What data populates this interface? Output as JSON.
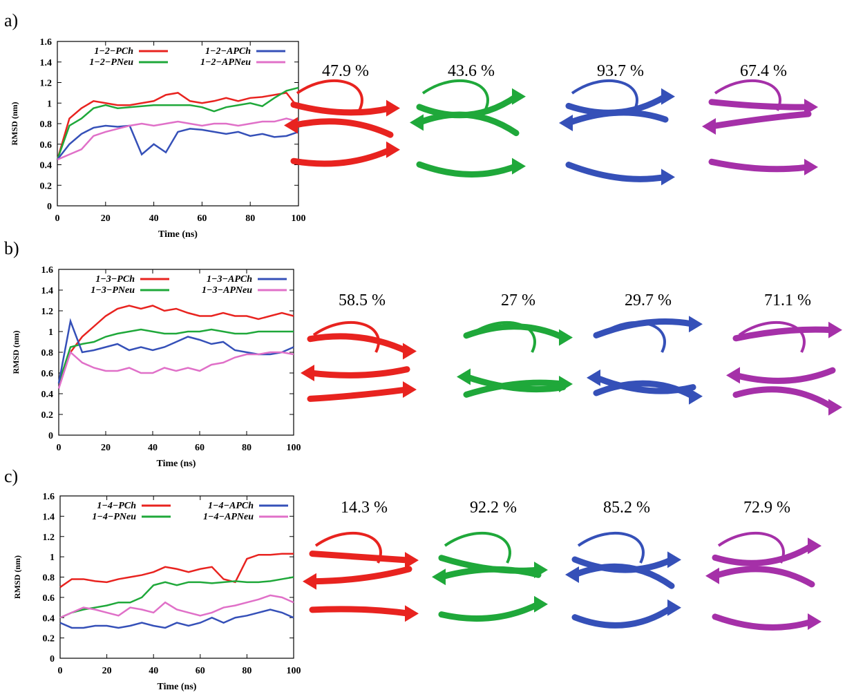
{
  "chart_data": [
    {
      "type": "line",
      "panel_label": "a)",
      "xlabel": "Time (ns)",
      "ylabel": "RMSD (nm)",
      "x": [
        0,
        5,
        10,
        15,
        20,
        25,
        30,
        35,
        40,
        45,
        50,
        55,
        60,
        65,
        70,
        75,
        80,
        85,
        90,
        95,
        100
      ],
      "xlim": [
        0,
        100
      ],
      "xticks": [
        0,
        20,
        40,
        60,
        80,
        100
      ],
      "ylim": [
        0,
        1.6
      ],
      "yticks": [
        0,
        0.2,
        0.4,
        0.6,
        0.8,
        1,
        1.2,
        1.4,
        1.6
      ],
      "series": [
        {
          "name": "1−2−PCh",
          "color": "#e8231f",
          "values": [
            0.45,
            0.85,
            0.95,
            1.02,
            1.0,
            0.98,
            0.98,
            1.0,
            1.02,
            1.08,
            1.1,
            1.02,
            1.0,
            1.02,
            1.05,
            1.02,
            1.05,
            1.06,
            1.08,
            1.1,
            0.95
          ]
        },
        {
          "name": "1−2−PNeu",
          "color": "#1fa83a",
          "values": [
            0.45,
            0.78,
            0.85,
            0.95,
            0.98,
            0.95,
            0.96,
            0.97,
            0.98,
            0.98,
            0.98,
            0.98,
            0.96,
            0.92,
            0.96,
            0.98,
            1.0,
            0.97,
            1.05,
            1.12,
            1.15
          ]
        },
        {
          "name": "1−2−APCh",
          "color": "#3550b8",
          "values": [
            0.45,
            0.6,
            0.7,
            0.76,
            0.78,
            0.77,
            0.78,
            0.5,
            0.6,
            0.52,
            0.72,
            0.75,
            0.74,
            0.72,
            0.7,
            0.72,
            0.68,
            0.7,
            0.67,
            0.68,
            0.72
          ]
        },
        {
          "name": "1−2−APNeu",
          "color": "#e070c8",
          "values": [
            0.45,
            0.5,
            0.55,
            0.68,
            0.72,
            0.75,
            0.78,
            0.8,
            0.78,
            0.8,
            0.82,
            0.8,
            0.78,
            0.8,
            0.8,
            0.78,
            0.8,
            0.82,
            0.82,
            0.85,
            0.82
          ]
        }
      ],
      "structure_labels": [
        "47.9 %",
        "43.6 %",
        "93.7 %",
        "67.4 %"
      ]
    },
    {
      "type": "line",
      "panel_label": "b)",
      "xlabel": "Time (ns)",
      "ylabel": "RMSD (nm)",
      "x": [
        0,
        5,
        10,
        15,
        20,
        25,
        30,
        35,
        40,
        45,
        50,
        55,
        60,
        65,
        70,
        75,
        80,
        85,
        90,
        95,
        100
      ],
      "xlim": [
        0,
        100
      ],
      "xticks": [
        0,
        20,
        40,
        60,
        80,
        100
      ],
      "ylim": [
        0,
        1.6
      ],
      "yticks": [
        0,
        0.2,
        0.4,
        0.6,
        0.8,
        1,
        1.2,
        1.4,
        1.6
      ],
      "series": [
        {
          "name": "1−3−PCh",
          "color": "#e8231f",
          "values": [
            0.5,
            0.8,
            0.95,
            1.05,
            1.15,
            1.22,
            1.25,
            1.22,
            1.25,
            1.2,
            1.22,
            1.18,
            1.15,
            1.15,
            1.18,
            1.15,
            1.15,
            1.12,
            1.15,
            1.18,
            1.15
          ]
        },
        {
          "name": "1−3−PNeu",
          "color": "#1fa83a",
          "values": [
            0.5,
            0.85,
            0.88,
            0.9,
            0.95,
            0.98,
            1.0,
            1.02,
            1.0,
            0.98,
            0.98,
            1.0,
            1.0,
            1.02,
            1.0,
            0.98,
            0.98,
            1.0,
            1.0,
            1.0,
            1.0
          ]
        },
        {
          "name": "1−3−APCh",
          "color": "#3550b8",
          "values": [
            0.5,
            1.1,
            0.8,
            0.82,
            0.85,
            0.88,
            0.82,
            0.85,
            0.82,
            0.85,
            0.9,
            0.95,
            0.92,
            0.88,
            0.9,
            0.82,
            0.8,
            0.78,
            0.78,
            0.8,
            0.85
          ]
        },
        {
          "name": "1−3−APNeu",
          "color": "#e070c8",
          "values": [
            0.45,
            0.8,
            0.7,
            0.65,
            0.62,
            0.62,
            0.65,
            0.6,
            0.6,
            0.65,
            0.62,
            0.65,
            0.62,
            0.68,
            0.7,
            0.75,
            0.78,
            0.78,
            0.8,
            0.8,
            0.78
          ]
        }
      ],
      "structure_labels": [
        "58.5 %",
        "27 %",
        "29.7 %",
        "71.1 %"
      ]
    },
    {
      "type": "line",
      "panel_label": "c)",
      "xlabel": "Time (ns)",
      "ylabel": "RMSD (nm)",
      "x": [
        0,
        5,
        10,
        15,
        20,
        25,
        30,
        35,
        40,
        45,
        50,
        55,
        60,
        65,
        70,
        75,
        80,
        85,
        90,
        95,
        100
      ],
      "xlim": [
        0,
        100
      ],
      "xticks": [
        0,
        20,
        40,
        60,
        80,
        100
      ],
      "ylim": [
        0,
        1.6
      ],
      "yticks": [
        0,
        0.2,
        0.4,
        0.6,
        0.8,
        1,
        1.2,
        1.4,
        1.6
      ],
      "series": [
        {
          "name": "1−4−PCh",
          "color": "#e8231f",
          "values": [
            0.7,
            0.78,
            0.78,
            0.76,
            0.75,
            0.78,
            0.8,
            0.82,
            0.85,
            0.9,
            0.88,
            0.85,
            0.88,
            0.9,
            0.78,
            0.75,
            0.98,
            1.02,
            1.02,
            1.03,
            1.03
          ]
        },
        {
          "name": "1−4−PNeu",
          "color": "#1fa83a",
          "values": [
            0.4,
            0.45,
            0.48,
            0.5,
            0.52,
            0.55,
            0.55,
            0.6,
            0.72,
            0.75,
            0.72,
            0.75,
            0.75,
            0.74,
            0.75,
            0.76,
            0.75,
            0.75,
            0.76,
            0.78,
            0.8
          ]
        },
        {
          "name": "1−4−APCh",
          "color": "#3550b8",
          "values": [
            0.35,
            0.3,
            0.3,
            0.32,
            0.32,
            0.3,
            0.32,
            0.35,
            0.32,
            0.3,
            0.35,
            0.32,
            0.35,
            0.4,
            0.35,
            0.4,
            0.42,
            0.45,
            0.48,
            0.45,
            0.4
          ]
        },
        {
          "name": "1−4−APNeu",
          "color": "#e070c8",
          "values": [
            0.4,
            0.45,
            0.5,
            0.48,
            0.45,
            0.42,
            0.5,
            0.48,
            0.45,
            0.55,
            0.48,
            0.45,
            0.42,
            0.45,
            0.5,
            0.52,
            0.55,
            0.58,
            0.62,
            0.6,
            0.55
          ]
        }
      ],
      "structure_labels": [
        "14.3 %",
        "92.2 %",
        "85.2 %",
        "72.9 %"
      ]
    }
  ]
}
